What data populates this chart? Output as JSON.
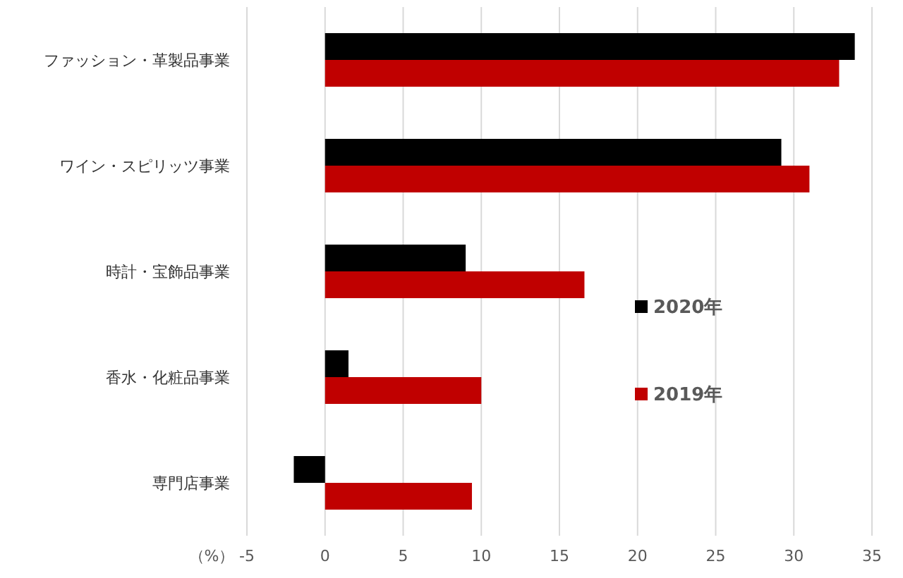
{
  "chart_data": {
    "type": "bar",
    "orientation": "horizontal",
    "xlabel": "（%）",
    "categories": [
      "ファッション・革製品事業",
      "ワイン・スピリッツ事業",
      "時計・宝飾品事業",
      "香水・化粧品事業",
      "専門店事業"
    ],
    "series": [
      {
        "name": "2020年",
        "color": "#000000",
        "values": [
          33.9,
          29.2,
          9.0,
          1.5,
          -2.0
        ]
      },
      {
        "name": "2019年",
        "color": "#c00000",
        "values": [
          32.9,
          31.0,
          16.6,
          10.0,
          9.4
        ]
      }
    ],
    "xlim": [
      -5,
      35
    ],
    "xticks": [
      -5,
      0,
      5,
      10,
      15,
      20,
      25,
      30,
      35
    ],
    "grid": "x",
    "legend": "right"
  }
}
